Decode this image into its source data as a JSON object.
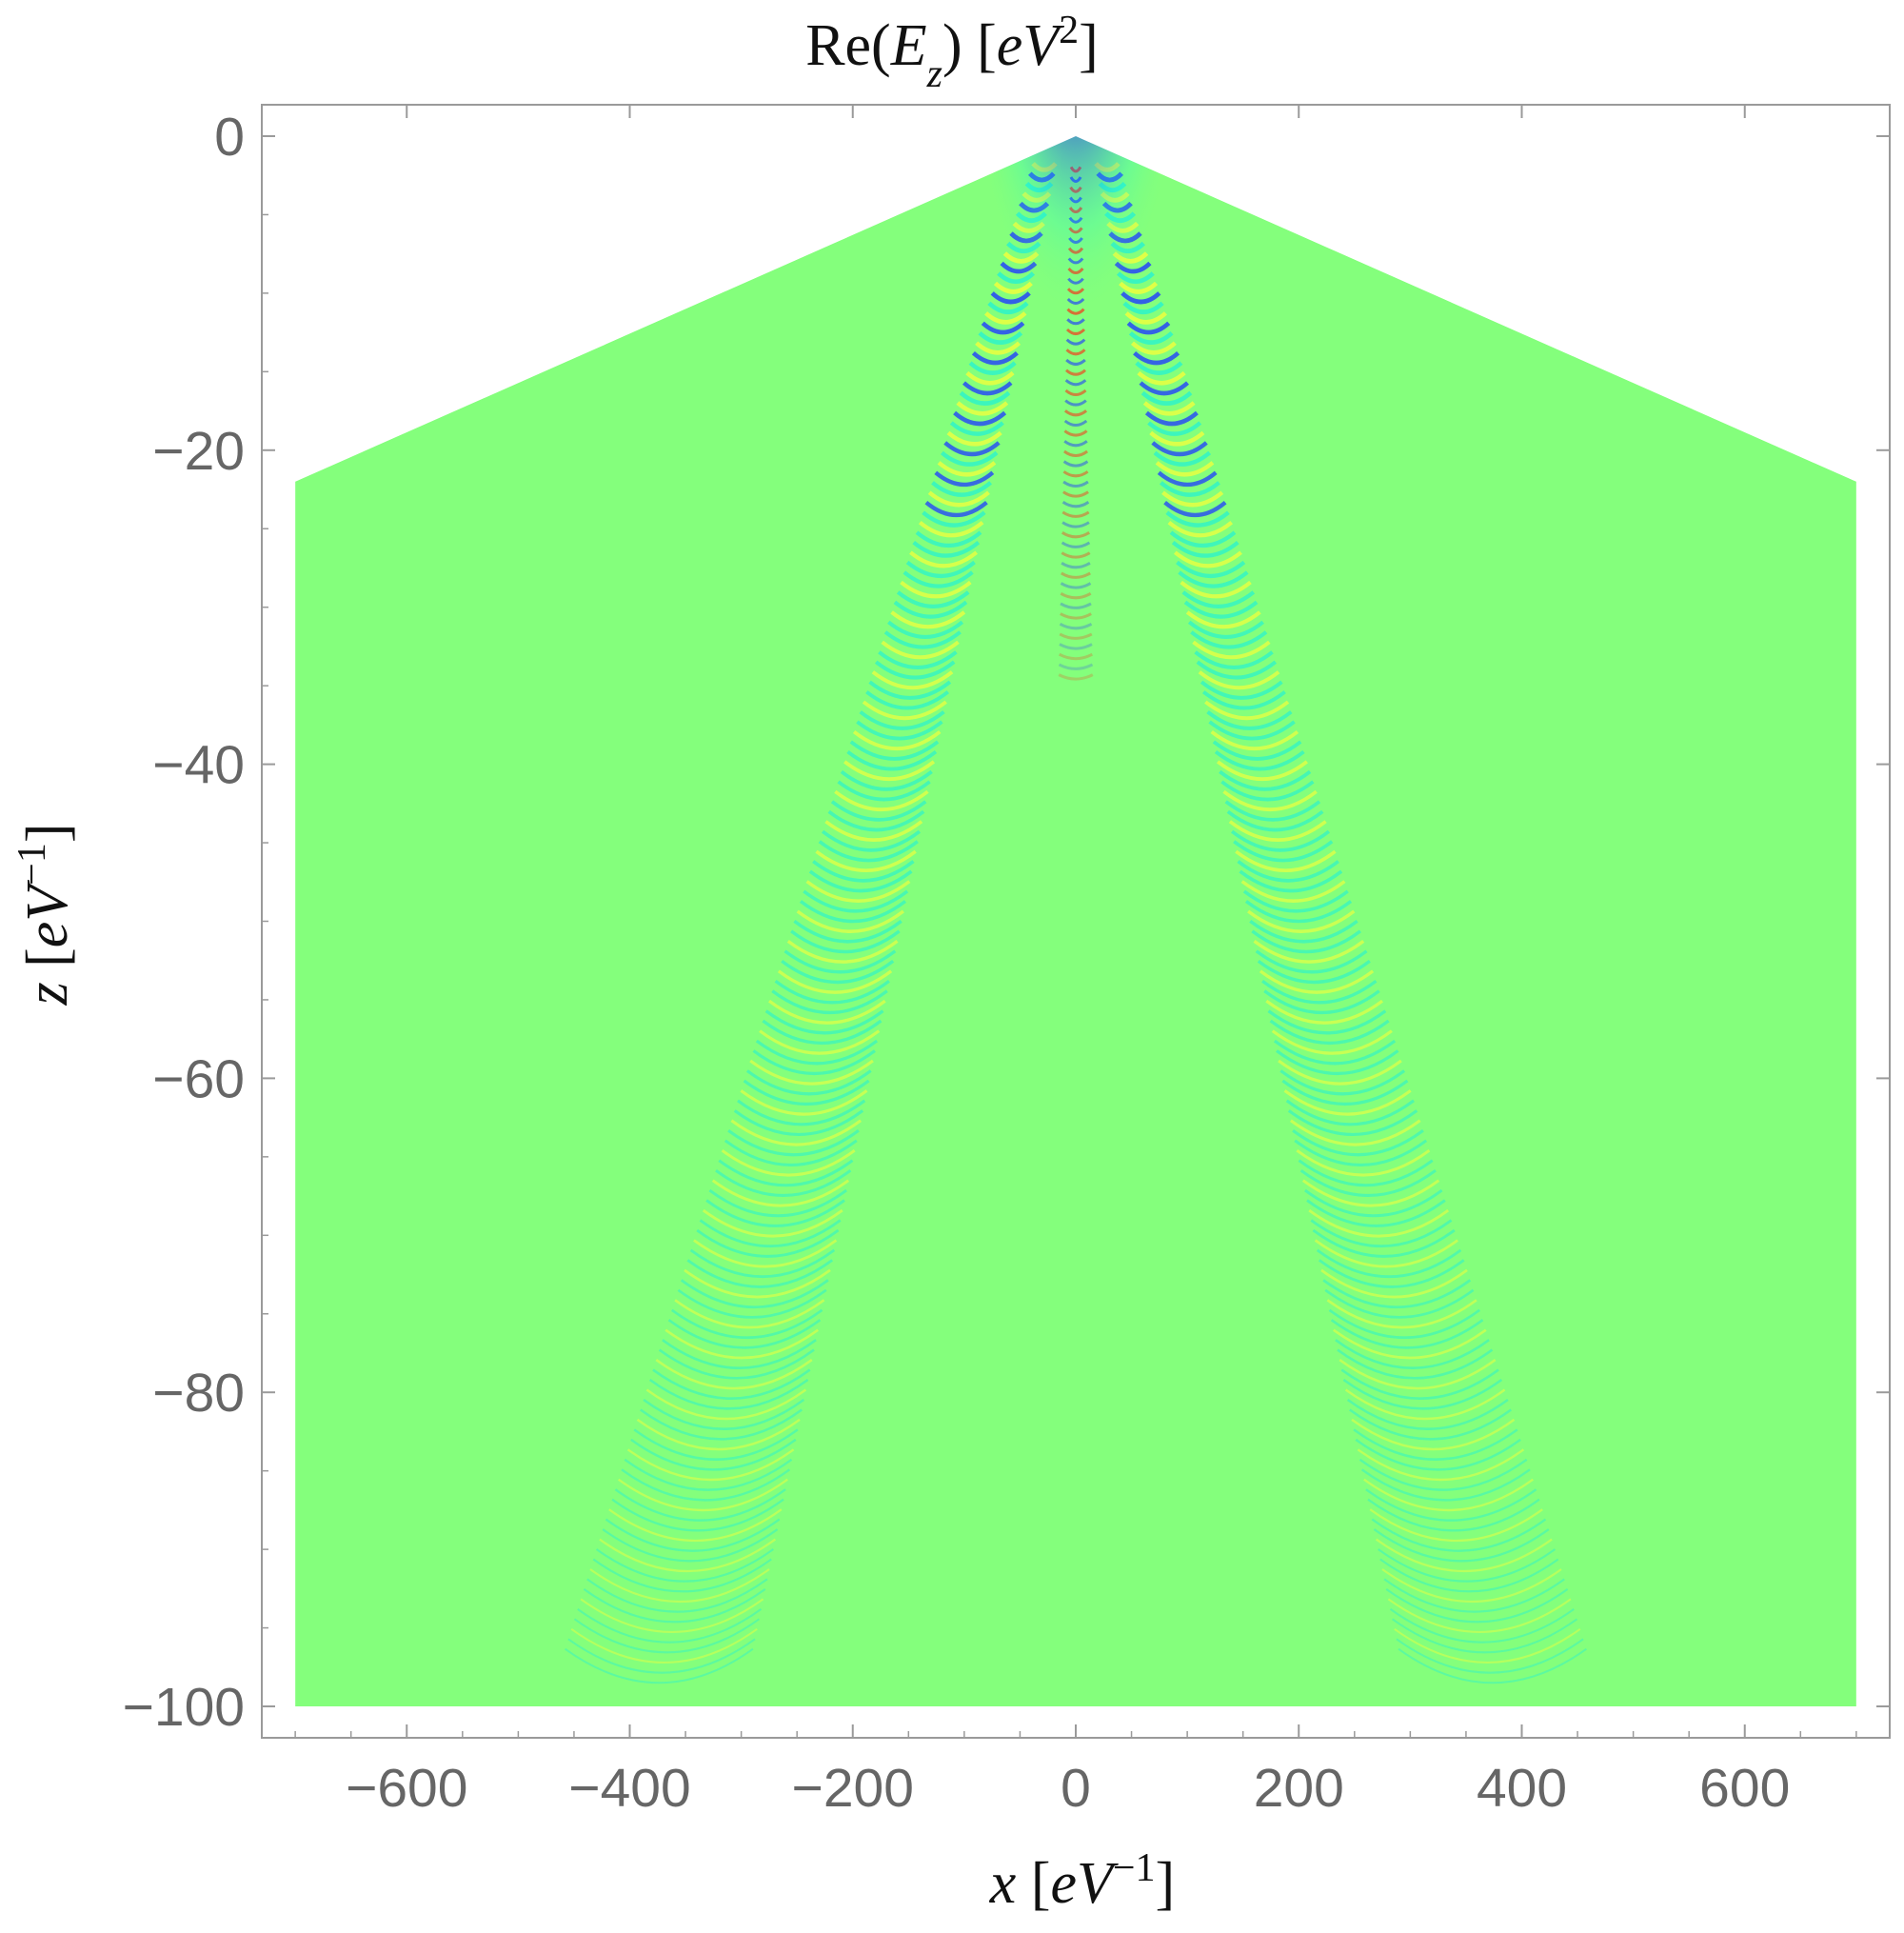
{
  "chart_data": {
    "type": "heatmap",
    "title": {
      "prefix": "Re(",
      "var": "E",
      "sub": "z",
      "mid": ") [",
      "unit": "eV",
      "sup": "2",
      "suffix": "]"
    },
    "xlabel": {
      "var": "x",
      "open": " [",
      "unit": "eV",
      "sup": "−1",
      "close": "]"
    },
    "ylabel": {
      "var": "z",
      "open": " [",
      "unit": "eV",
      "sup": "−1",
      "close": "]"
    },
    "xlim": [
      -730,
      730
    ],
    "ylim": [
      -102,
      2
    ],
    "xticks": [
      {
        "value": -600,
        "label": "−600"
      },
      {
        "value": -400,
        "label": "−400"
      },
      {
        "value": -200,
        "label": "−200"
      },
      {
        "value": 0,
        "label": "0"
      },
      {
        "value": 200,
        "label": "200"
      },
      {
        "value": 400,
        "label": "400"
      },
      {
        "value": 600,
        "label": "600"
      }
    ],
    "yticks": [
      {
        "value": 0,
        "label": "0"
      },
      {
        "value": -20,
        "label": "−20"
      },
      {
        "value": -40,
        "label": "−40"
      },
      {
        "value": -60,
        "label": "−60"
      },
      {
        "value": -80,
        "label": "−80"
      },
      {
        "value": -100,
        "label": "−100"
      }
    ],
    "domain_polygon": [
      [
        0,
        0
      ],
      [
        700,
        -22
      ],
      [
        700,
        -100
      ],
      [
        -700,
        -100
      ],
      [
        -700,
        -22
      ]
    ],
    "grid": false,
    "legend": "none",
    "colors": {
      "background": "#84ff7c",
      "low": "#1f3cff",
      "mid_low": "#27f2d0",
      "mid_high": "#f4ff3a",
      "high": "#ff2a12",
      "peak": "#5a0a4e",
      "frame": "#9a9a9a"
    }
  }
}
